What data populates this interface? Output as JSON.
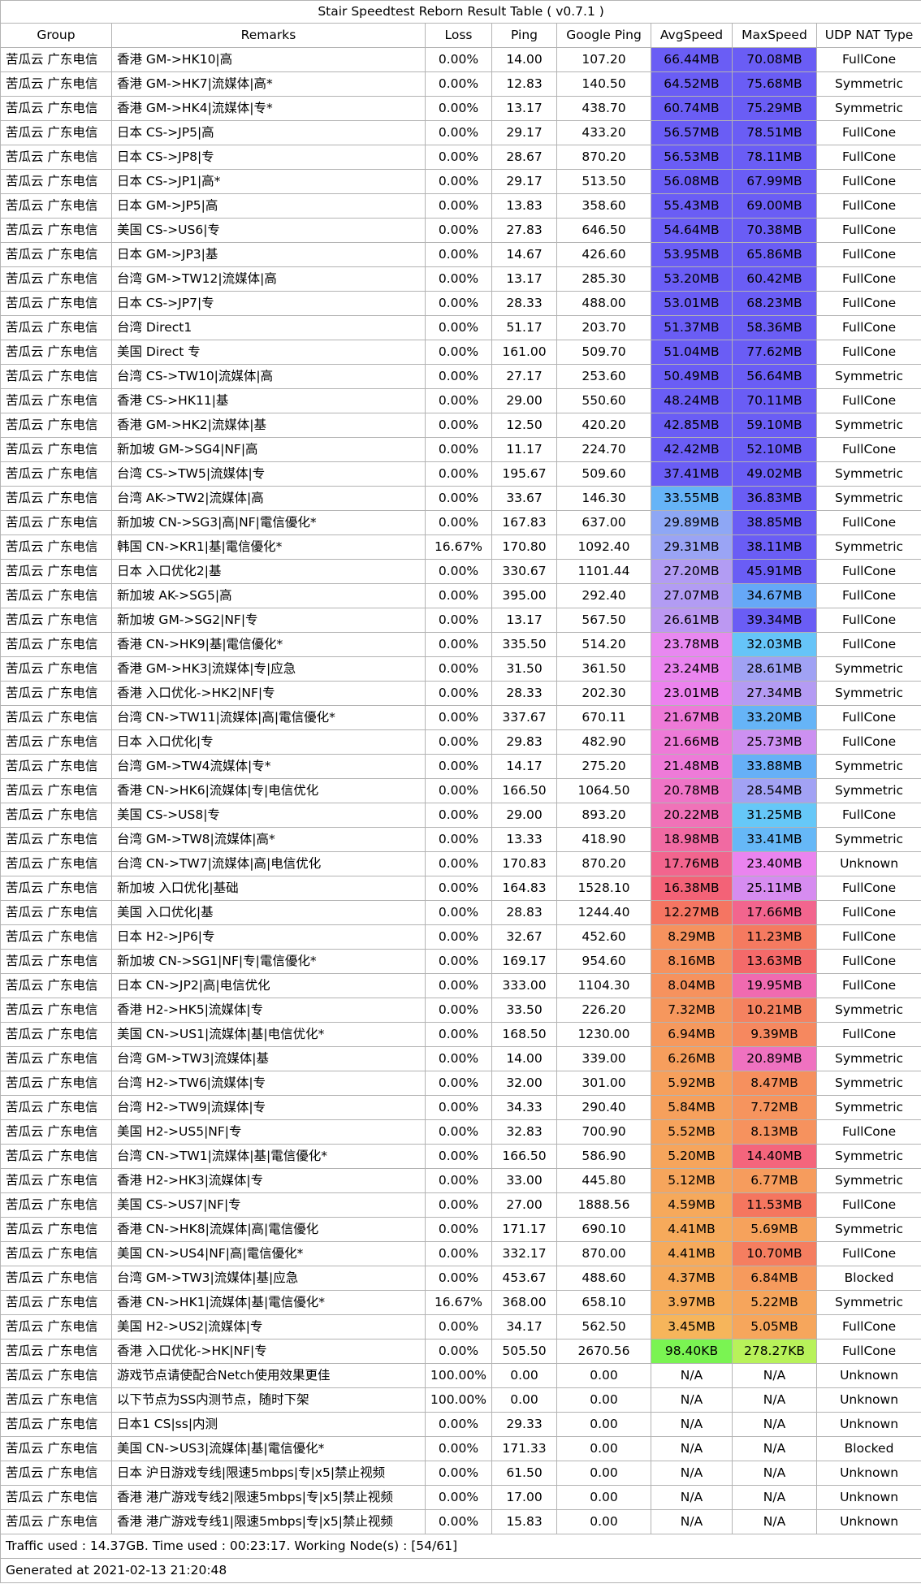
{
  "title": "Stair Speedtest Reborn Result Table ( v0.7.1 )",
  "columns": [
    "Group",
    "Remarks",
    "Loss",
    "Ping",
    "Google Ping",
    "AvgSpeed",
    "MaxSpeed",
    "UDP NAT Type"
  ],
  "rows": [
    {
      "group": "苦瓜云 广东电信",
      "remarks": "香港 GM->HK10|高",
      "loss": "0.00%",
      "ping": "14.00",
      "gping": "107.20",
      "avg": "66.44MB",
      "avg_color": "#6a5df5",
      "max": "70.08MB",
      "max_color": "#6a5df5",
      "nat": "FullCone"
    },
    {
      "group": "苦瓜云 广东电信",
      "remarks": "香港 GM->HK7|流媒体|高*",
      "loss": "0.00%",
      "ping": "12.83",
      "gping": "140.50",
      "avg": "64.52MB",
      "avg_color": "#6a5df5",
      "max": "75.68MB",
      "max_color": "#6a5df5",
      "nat": "Symmetric"
    },
    {
      "group": "苦瓜云 广东电信",
      "remarks": "香港 GM->HK4|流媒体|专*",
      "loss": "0.00%",
      "ping": "13.17",
      "gping": "438.70",
      "avg": "60.74MB",
      "avg_color": "#6a5df5",
      "max": "75.29MB",
      "max_color": "#6a5df5",
      "nat": "Symmetric"
    },
    {
      "group": "苦瓜云 广东电信",
      "remarks": "日本 CS->JP5|高",
      "loss": "0.00%",
      "ping": "29.17",
      "gping": "433.20",
      "avg": "56.57MB",
      "avg_color": "#6a5df5",
      "max": "78.51MB",
      "max_color": "#6a5df5",
      "nat": "FullCone"
    },
    {
      "group": "苦瓜云 广东电信",
      "remarks": "日本 CS->JP8|专",
      "loss": "0.00%",
      "ping": "28.67",
      "gping": "870.20",
      "avg": "56.53MB",
      "avg_color": "#6a5df5",
      "max": "78.11MB",
      "max_color": "#6a5df5",
      "nat": "FullCone"
    },
    {
      "group": "苦瓜云 广东电信",
      "remarks": "日本 CS->JP1|高*",
      "loss": "0.00%",
      "ping": "29.17",
      "gping": "513.50",
      "avg": "56.08MB",
      "avg_color": "#6a5df5",
      "max": "67.99MB",
      "max_color": "#6a5df5",
      "nat": "FullCone"
    },
    {
      "group": "苦瓜云 广东电信",
      "remarks": "日本 GM->JP5|高",
      "loss": "0.00%",
      "ping": "13.83",
      "gping": "358.60",
      "avg": "55.43MB",
      "avg_color": "#6a5df5",
      "max": "69.00MB",
      "max_color": "#6a5df5",
      "nat": "FullCone"
    },
    {
      "group": "苦瓜云 广东电信",
      "remarks": "美国 CS->US6|专",
      "loss": "0.00%",
      "ping": "27.83",
      "gping": "646.50",
      "avg": "54.64MB",
      "avg_color": "#6a5df5",
      "max": "70.38MB",
      "max_color": "#6a5df5",
      "nat": "FullCone"
    },
    {
      "group": "苦瓜云 广东电信",
      "remarks": "日本 GM->JP3|基",
      "loss": "0.00%",
      "ping": "14.67",
      "gping": "426.60",
      "avg": "53.95MB",
      "avg_color": "#6a5df5",
      "max": "65.86MB",
      "max_color": "#6a5df5",
      "nat": "FullCone"
    },
    {
      "group": "苦瓜云 广东电信",
      "remarks": "台湾 GM->TW12|流媒体|高",
      "loss": "0.00%",
      "ping": "13.17",
      "gping": "285.30",
      "avg": "53.20MB",
      "avg_color": "#6a5df5",
      "max": "60.42MB",
      "max_color": "#6a5df5",
      "nat": "FullCone"
    },
    {
      "group": "苦瓜云 广东电信",
      "remarks": "日本 CS->JP7|专",
      "loss": "0.00%",
      "ping": "28.33",
      "gping": "488.00",
      "avg": "53.01MB",
      "avg_color": "#6a5df5",
      "max": "68.23MB",
      "max_color": "#6a5df5",
      "nat": "FullCone"
    },
    {
      "group": "苦瓜云 广东电信",
      "remarks": "台湾  Direct1",
      "loss": "0.00%",
      "ping": "51.17",
      "gping": "203.70",
      "avg": "51.37MB",
      "avg_color": "#6a5df5",
      "max": "58.36MB",
      "max_color": "#6a5df5",
      "nat": "FullCone"
    },
    {
      "group": "苦瓜云 广东电信",
      "remarks": "美国 Direct 专",
      "loss": "0.00%",
      "ping": "161.00",
      "gping": "509.70",
      "avg": "51.04MB",
      "avg_color": "#6a5df5",
      "max": "77.62MB",
      "max_color": "#6a5df5",
      "nat": "FullCone"
    },
    {
      "group": "苦瓜云 广东电信",
      "remarks": "台湾 CS->TW10|流媒体|高",
      "loss": "0.00%",
      "ping": "27.17",
      "gping": "253.60",
      "avg": "50.49MB",
      "avg_color": "#6a5df5",
      "max": "56.64MB",
      "max_color": "#6a5df5",
      "nat": "Symmetric"
    },
    {
      "group": "苦瓜云 广东电信",
      "remarks": "香港 CS->HK11|基",
      "loss": "0.00%",
      "ping": "29.00",
      "gping": "550.60",
      "avg": "48.24MB",
      "avg_color": "#6a5df5",
      "max": "70.11MB",
      "max_color": "#6a5df5",
      "nat": "FullCone"
    },
    {
      "group": "苦瓜云 广东电信",
      "remarks": "香港 GM->HK2|流媒体|基",
      "loss": "0.00%",
      "ping": "12.50",
      "gping": "420.20",
      "avg": "42.85MB",
      "avg_color": "#6a5df5",
      "max": "59.10MB",
      "max_color": "#6a5df5",
      "nat": "Symmetric"
    },
    {
      "group": "苦瓜云 广东电信",
      "remarks": "新加坡 GM->SG4|NF|高",
      "loss": "0.00%",
      "ping": "11.17",
      "gping": "224.70",
      "avg": "42.42MB",
      "avg_color": "#6a5df5",
      "max": "52.10MB",
      "max_color": "#6a5df5",
      "nat": "FullCone"
    },
    {
      "group": "苦瓜云 广东电信",
      "remarks": "台湾 CS->TW5|流媒体|专",
      "loss": "0.00%",
      "ping": "195.67",
      "gping": "509.60",
      "avg": "37.41MB",
      "avg_color": "#6a5df5",
      "max": "49.02MB",
      "max_color": "#6a5df5",
      "nat": "Symmetric"
    },
    {
      "group": "苦瓜云 广东电信",
      "remarks": "台湾 AK->TW2|流媒体|高",
      "loss": "0.00%",
      "ping": "33.67",
      "gping": "146.30",
      "avg": "33.55MB",
      "avg_color": "#66b4f7",
      "max": "36.83MB",
      "max_color": "#6a5df5",
      "nat": "Symmetric"
    },
    {
      "group": "苦瓜云 广东电信",
      "remarks": "新加坡 CN->SG3|高|NF|電信優化*",
      "loss": "0.00%",
      "ping": "167.83",
      "gping": "637.00",
      "avg": "29.89MB",
      "avg_color": "#8ea7f5",
      "max": "38.85MB",
      "max_color": "#6a5df5",
      "nat": "FullCone"
    },
    {
      "group": "苦瓜云 广东电信",
      "remarks": "韩国 CN->KR1|基|電信優化*",
      "loss": "16.67%",
      "ping": "170.80",
      "gping": "1092.40",
      "avg": "29.31MB",
      "avg_color": "#9aa4f5",
      "max": "38.11MB",
      "max_color": "#6a5df5",
      "nat": "Symmetric"
    },
    {
      "group": "苦瓜云 广东电信",
      "remarks": "日本 入口优化2|基",
      "loss": "0.00%",
      "ping": "330.67",
      "gping": "1101.44",
      "avg": "27.20MB",
      "avg_color": "#b29cf3",
      "max": "45.91MB",
      "max_color": "#6a5df5",
      "nat": "FullCone"
    },
    {
      "group": "苦瓜云 广东电信",
      "remarks": "新加坡 AK->SG5|高",
      "loss": "0.00%",
      "ping": "395.00",
      "gping": "292.40",
      "avg": "27.07MB",
      "avg_color": "#b29cf3",
      "max": "34.67MB",
      "max_color": "#66a8f7",
      "nat": "FullCone"
    },
    {
      "group": "苦瓜云 广东电信",
      "remarks": "新加坡 GM->SG2|NF|专",
      "loss": "0.00%",
      "ping": "13.17",
      "gping": "567.50",
      "avg": "26.61MB",
      "avg_color": "#bc98f2",
      "max": "39.34MB",
      "max_color": "#6a5df5",
      "nat": "FullCone"
    },
    {
      "group": "苦瓜云 广东电信",
      "remarks": "香港 CN->HK9|基|電信優化*",
      "loss": "0.00%",
      "ping": "335.50",
      "gping": "514.20",
      "avg": "23.78MB",
      "avg_color": "#e888f0",
      "max": "32.03MB",
      "max_color": "#66c4f8",
      "nat": "FullCone"
    },
    {
      "group": "苦瓜云 广东电信",
      "remarks": "香港 GM->HK3|流媒体|专|应急",
      "loss": "0.00%",
      "ping": "31.50",
      "gping": "361.50",
      "avg": "23.24MB",
      "avg_color": "#ea84ef",
      "max": "28.61MB",
      "max_color": "#a0a2f4",
      "nat": "Symmetric"
    },
    {
      "group": "苦瓜云 广东电信",
      "remarks": "香港 入口优化->HK2|NF|专",
      "loss": "0.00%",
      "ping": "28.33",
      "gping": "202.30",
      "avg": "23.01MB",
      "avg_color": "#ec82ee",
      "max": "27.34MB",
      "max_color": "#b49bf3",
      "nat": "Symmetric"
    },
    {
      "group": "苦瓜云 广东电信",
      "remarks": "台湾 CN->TW11|流媒体|高|電信優化*",
      "loss": "0.00%",
      "ping": "337.67",
      "gping": "670.11",
      "avg": "21.67MB",
      "avg_color": "#ee7ad8",
      "max": "33.20MB",
      "max_color": "#66b4f7",
      "nat": "FullCone"
    },
    {
      "group": "苦瓜云 广东电信",
      "remarks": "日本 入口优化|专",
      "loss": "0.00%",
      "ping": "29.83",
      "gping": "482.90",
      "avg": "21.66MB",
      "avg_color": "#ee7ad8",
      "max": "25.73MB",
      "max_color": "#cc90f1",
      "nat": "FullCone"
    },
    {
      "group": "苦瓜云 广东电信",
      "remarks": "台湾 GM->TW4流媒体|专*",
      "loss": "0.00%",
      "ping": "14.17",
      "gping": "275.20",
      "avg": "21.48MB",
      "avg_color": "#ee7ad8",
      "max": "33.88MB",
      "max_color": "#66b0f7",
      "nat": "Symmetric"
    },
    {
      "group": "苦瓜云 广东电信",
      "remarks": "香港 CN->HK6|流媒体|专|电信优化",
      "loss": "0.00%",
      "ping": "166.50",
      "gping": "1064.50",
      "avg": "20.78MB",
      "avg_color": "#ef74c6",
      "max": "28.54MB",
      "max_color": "#a2a2f4",
      "nat": "Symmetric"
    },
    {
      "group": "苦瓜云 广东电信",
      "remarks": "美国 CS->US8|专",
      "loss": "0.00%",
      "ping": "29.00",
      "gping": "893.20",
      "avg": "20.22MB",
      "avg_color": "#f072b8",
      "max": "31.25MB",
      "max_color": "#66c8f8",
      "nat": "FullCone"
    },
    {
      "group": "苦瓜云 广东电信",
      "remarks": "台湾 GM->TW8|流媒体|高*",
      "loss": "0.00%",
      "ping": "13.33",
      "gping": "418.90",
      "avg": "18.98MB",
      "avg_color": "#f16aa2",
      "max": "33.41MB",
      "max_color": "#66b8f7",
      "nat": "Symmetric"
    },
    {
      "group": "苦瓜云 广东电信",
      "remarks": "台湾 CN->TW7|流媒体|高|电信优化",
      "loss": "0.00%",
      "ping": "170.83",
      "gping": "870.20",
      "avg": "17.76MB",
      "avg_color": "#f2658e",
      "max": "23.40MB",
      "max_color": "#ea84ef",
      "nat": "Unknown"
    },
    {
      "group": "苦瓜云 广东电信",
      "remarks": "新加坡 入口优化|基础",
      "loss": "0.00%",
      "ping": "164.83",
      "gping": "1528.10",
      "avg": "16.38MB",
      "avg_color": "#f36277",
      "max": "25.11MB",
      "max_color": "#d68cf0",
      "nat": "FullCone"
    },
    {
      "group": "苦瓜云 广东电信",
      "remarks": "美国 入口优化|基",
      "loss": "0.00%",
      "ping": "28.83",
      "gping": "1244.40",
      "avg": "12.27MB",
      "avg_color": "#f57562",
      "max": "17.66MB",
      "max_color": "#f2658e",
      "nat": "FullCone"
    },
    {
      "group": "苦瓜云 广东电信",
      "remarks": "日本 H2->JP6|专",
      "loss": "0.00%",
      "ping": "32.67",
      "gping": "452.60",
      "avg": "8.29MB",
      "avg_color": "#f6925e",
      "max": "11.23MB",
      "max_color": "#f57a60",
      "nat": "FullCone"
    },
    {
      "group": "苦瓜云 广东电信",
      "remarks": "新加坡 CN->SG1|NF|专|電信優化*",
      "loss": "0.00%",
      "ping": "169.17",
      "gping": "954.60",
      "avg": "8.16MB",
      "avg_color": "#f6925e",
      "max": "13.63MB",
      "max_color": "#f46a6a",
      "nat": "FullCone"
    },
    {
      "group": "苦瓜云 广东电信",
      "remarks": "日本 CN->JP2|高|电信优化",
      "loss": "0.00%",
      "ping": "333.00",
      "gping": "1104.30",
      "avg": "8.04MB",
      "avg_color": "#f6925e",
      "max": "19.95MB",
      "max_color": "#f06ab0",
      "nat": "FullCone"
    },
    {
      "group": "苦瓜云 广东电信",
      "remarks": "香港 H2->HK5|流媒体|专",
      "loss": "0.00%",
      "ping": "33.50",
      "gping": "226.20",
      "avg": "7.32MB",
      "avg_color": "#f6975d",
      "max": "10.21MB",
      "max_color": "#f58260",
      "nat": "Symmetric"
    },
    {
      "group": "苦瓜云 广东电信",
      "remarks": "美国 CN->US1|流媒体|基|电信优化*",
      "loss": "0.00%",
      "ping": "168.50",
      "gping": "1230.00",
      "avg": "6.94MB",
      "avg_color": "#f6995d",
      "max": "9.39MB",
      "max_color": "#f6885f",
      "nat": "FullCone"
    },
    {
      "group": "苦瓜云 广东电信",
      "remarks": "台湾 GM->TW3|流媒体|基",
      "loss": "0.00%",
      "ping": "14.00",
      "gping": "339.00",
      "avg": "6.26MB",
      "avg_color": "#f69e5d",
      "max": "20.89MB",
      "max_color": "#ef72c0",
      "nat": "Symmetric"
    },
    {
      "group": "苦瓜云 广东电信",
      "remarks": "台湾 H2->TW6|流媒体|专",
      "loss": "0.00%",
      "ping": "32.00",
      "gping": "301.00",
      "avg": "5.92MB",
      "avg_color": "#f6a05c",
      "max": "8.47MB",
      "max_color": "#f6905e",
      "nat": "Symmetric"
    },
    {
      "group": "苦瓜云 广东电信",
      "remarks": "台湾 H2->TW9|流媒体|专",
      "loss": "0.00%",
      "ping": "34.33",
      "gping": "290.40",
      "avg": "5.84MB",
      "avg_color": "#f6a05c",
      "max": "7.72MB",
      "max_color": "#f6945e",
      "nat": "Symmetric"
    },
    {
      "group": "苦瓜云 广东电信",
      "remarks": "美国 H2->US5|NF|专",
      "loss": "0.00%",
      "ping": "32.83",
      "gping": "700.90",
      "avg": "5.52MB",
      "avg_color": "#f6a35c",
      "max": "8.13MB",
      "max_color": "#f6925e",
      "nat": "FullCone"
    },
    {
      "group": "苦瓜云 广东电信",
      "remarks": "台湾 CN->TW1|流媒体|基|電信優化*",
      "loss": "0.00%",
      "ping": "166.50",
      "gping": "586.90",
      "avg": "5.20MB",
      "avg_color": "#f6a55c",
      "max": "14.40MB",
      "max_color": "#f4657c",
      "nat": "Symmetric"
    },
    {
      "group": "苦瓜云 广东电信",
      "remarks": "香港 H2->HK3|流媒体|专",
      "loss": "0.00%",
      "ping": "33.00",
      "gping": "445.80",
      "avg": "5.12MB",
      "avg_color": "#f6a55c",
      "max": "6.77MB",
      "max_color": "#f69c5d",
      "nat": "Symmetric"
    },
    {
      "group": "苦瓜云 广东电信",
      "remarks": "美国 CS->US7|NF|专",
      "loss": "0.00%",
      "ping": "27.00",
      "gping": "1888.56",
      "avg": "4.59MB",
      "avg_color": "#f6a95b",
      "max": "11.53MB",
      "max_color": "#f5765f",
      "nat": "FullCone"
    },
    {
      "group": "苦瓜云 广东电信",
      "remarks": "香港 CN->HK8|流媒体|高|電信優化",
      "loss": "0.00%",
      "ping": "171.17",
      "gping": "690.10",
      "avg": "4.41MB",
      "avg_color": "#f6aa5b",
      "max": "5.69MB",
      "max_color": "#f6a25c",
      "nat": "Symmetric"
    },
    {
      "group": "苦瓜云 广东电信",
      "remarks": "美国 CN->US4|NF|高|電信優化*",
      "loss": "0.00%",
      "ping": "332.17",
      "gping": "870.00",
      "avg": "4.41MB",
      "avg_color": "#f6aa5b",
      "max": "10.70MB",
      "max_color": "#f57e60",
      "nat": "FullCone"
    },
    {
      "group": "苦瓜云 广东电信",
      "remarks": "台湾 GM->TW3|流媒体|基|应急",
      "loss": "0.00%",
      "ping": "453.67",
      "gping": "488.60",
      "avg": "4.37MB",
      "avg_color": "#f6aa5b",
      "max": "6.84MB",
      "max_color": "#f69a5d",
      "nat": "Blocked"
    },
    {
      "group": "苦瓜云 广东电信",
      "remarks": "香港 CN->HK1|流媒体|基|電信優化*",
      "loss": "16.67%",
      "ping": "368.00",
      "gping": "658.10",
      "avg": "3.97MB",
      "avg_color": "#f6ad5b",
      "max": "5.22MB",
      "max_color": "#f6a55c",
      "nat": "Symmetric"
    },
    {
      "group": "苦瓜云 广东电信",
      "remarks": "美国 H2->US2|流媒体|专",
      "loss": "0.00%",
      "ping": "34.17",
      "gping": "562.50",
      "avg": "3.45MB",
      "avg_color": "#f6b55b",
      "max": "5.05MB",
      "max_color": "#f6a65c",
      "nat": "FullCone"
    },
    {
      "group": "苦瓜云 广东电信",
      "remarks": "香港 入口优化->HK|NF|专",
      "loss": "0.00%",
      "ping": "505.50",
      "gping": "2670.56",
      "avg": "98.40KB",
      "avg_color": "#7af452",
      "max": "278.27KB",
      "max_color": "#b8f25a",
      "nat": "FullCone"
    },
    {
      "group": "苦瓜云 广东电信",
      "remarks": "游戏节点请使配合Netch使用效果更佳",
      "loss": "100.00%",
      "ping": "0.00",
      "gping": "0.00",
      "avg": "N/A",
      "avg_color": "",
      "max": "N/A",
      "max_color": "",
      "nat": "Unknown"
    },
    {
      "group": "苦瓜云 广东电信",
      "remarks": "以下节点为SS内测节点，随时下架",
      "loss": "100.00%",
      "ping": "0.00",
      "gping": "0.00",
      "avg": "N/A",
      "avg_color": "",
      "max": "N/A",
      "max_color": "",
      "nat": "Unknown"
    },
    {
      "group": "苦瓜云 广东电信",
      "remarks": "日本1 CS|ss|内测",
      "loss": "0.00%",
      "ping": "29.33",
      "gping": "0.00",
      "avg": "N/A",
      "avg_color": "",
      "max": "N/A",
      "max_color": "",
      "nat": "Unknown"
    },
    {
      "group": "苦瓜云 广东电信",
      "remarks": "美国 CN->US3|流媒体|基|電信優化*",
      "loss": "0.00%",
      "ping": "171.33",
      "gping": "0.00",
      "avg": "N/A",
      "avg_color": "",
      "max": "N/A",
      "max_color": "",
      "nat": "Blocked"
    },
    {
      "group": "苦瓜云 广东电信",
      "remarks": "日本 沪日游戏专线|限速5mbps|专|x5|禁止视频",
      "loss": "0.00%",
      "ping": "61.50",
      "gping": "0.00",
      "avg": "N/A",
      "avg_color": "",
      "max": "N/A",
      "max_color": "",
      "nat": "Unknown"
    },
    {
      "group": "苦瓜云 广东电信",
      "remarks": "香港 港广游戏专线2|限速5mbps|专|x5|禁止视频",
      "loss": "0.00%",
      "ping": "17.00",
      "gping": "0.00",
      "avg": "N/A",
      "avg_color": "",
      "max": "N/A",
      "max_color": "",
      "nat": "Unknown"
    },
    {
      "group": "苦瓜云 广东电信",
      "remarks": "香港 港广游戏专线1|限速5mbps|专|x5|禁止视频",
      "loss": "0.00%",
      "ping": "15.83",
      "gping": "0.00",
      "avg": "N/A",
      "avg_color": "",
      "max": "N/A",
      "max_color": "",
      "nat": "Unknown"
    }
  ],
  "footer": {
    "traffic": "Traffic used : 14.37GB. Time used : 00:23:17. Working Node(s) : [54/61]",
    "generated": "Generated at 2021-02-13 21:20:48"
  }
}
